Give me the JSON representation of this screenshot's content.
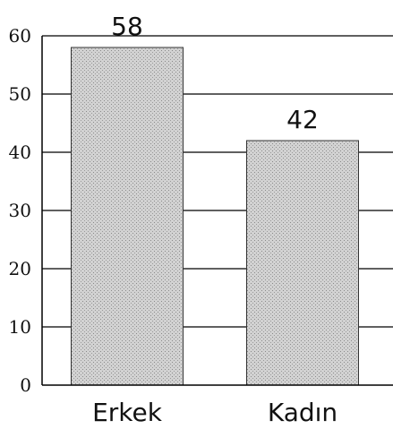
{
  "chart_data": {
    "type": "bar",
    "categories": [
      "Erkek",
      "Kadın"
    ],
    "values": [
      58,
      42
    ],
    "data_labels": [
      "58",
      "42"
    ],
    "title": "",
    "xlabel": "",
    "ylabel": "",
    "ylim": [
      0,
      60
    ],
    "yticks": [
      0,
      10,
      20,
      30,
      40,
      50,
      60
    ],
    "ytick_labels": [
      "0",
      "10",
      "20",
      "30",
      "40",
      "50",
      "60"
    ],
    "grid": true,
    "legend": "none",
    "bar_fill": "#d2d2d2",
    "bar_stroke": "#333333",
    "grid_color": "#000000"
  }
}
